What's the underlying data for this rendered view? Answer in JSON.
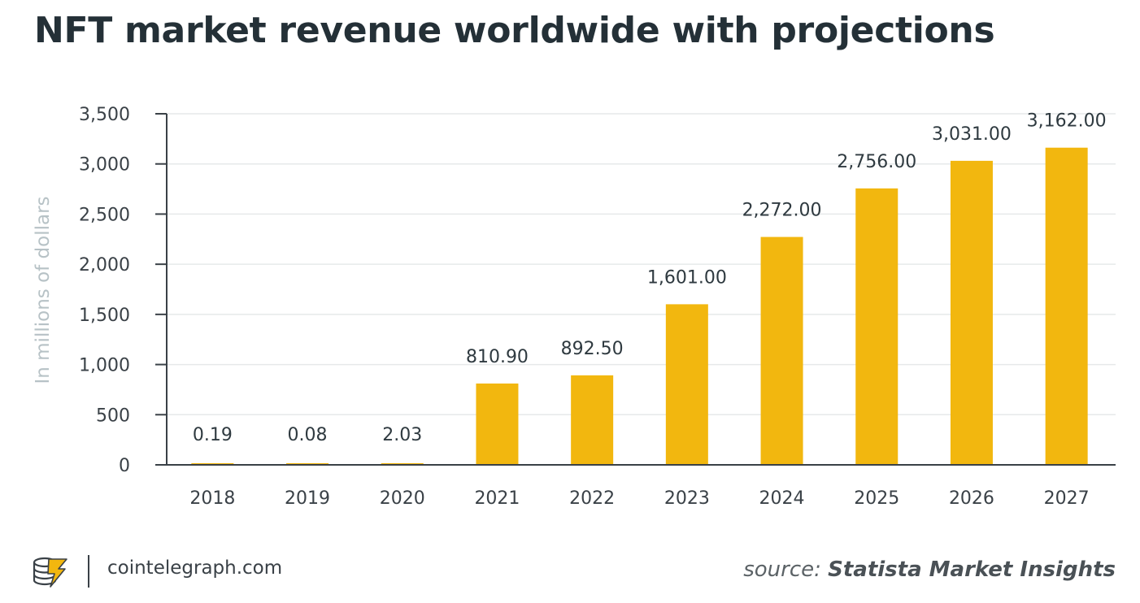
{
  "title": "NFT market revenue worldwide with projections",
  "chart_data": {
    "type": "bar",
    "categories": [
      "2018",
      "2019",
      "2020",
      "2021",
      "2022",
      "2023",
      "2024",
      "2025",
      "2026",
      "2027"
    ],
    "values": [
      0.19,
      0.08,
      2.03,
      810.9,
      892.5,
      1601.0,
      2272.0,
      2756.0,
      3031.0,
      3162.0
    ],
    "value_labels": [
      "0.19",
      "0.08",
      "2.03",
      "810.90",
      "892.50",
      "1,601.00",
      "2,272.00",
      "2,756.00",
      "3,031.00",
      "3,162.00"
    ],
    "ylabel": "In millions of dollars",
    "ylim": [
      0,
      3500
    ],
    "yticks": [
      0,
      500,
      1000,
      1500,
      2000,
      2500,
      3000,
      3500
    ],
    "ytick_labels": [
      "0",
      "500",
      "1,000",
      "1,500",
      "2,000",
      "2,500",
      "3,000",
      "3,500"
    ],
    "grid": true,
    "bar_color": "#f2b70f"
  },
  "footer": {
    "site": "cointelegraph.com",
    "source_prefix": "source:",
    "source_name": "Statista Market Insights"
  }
}
